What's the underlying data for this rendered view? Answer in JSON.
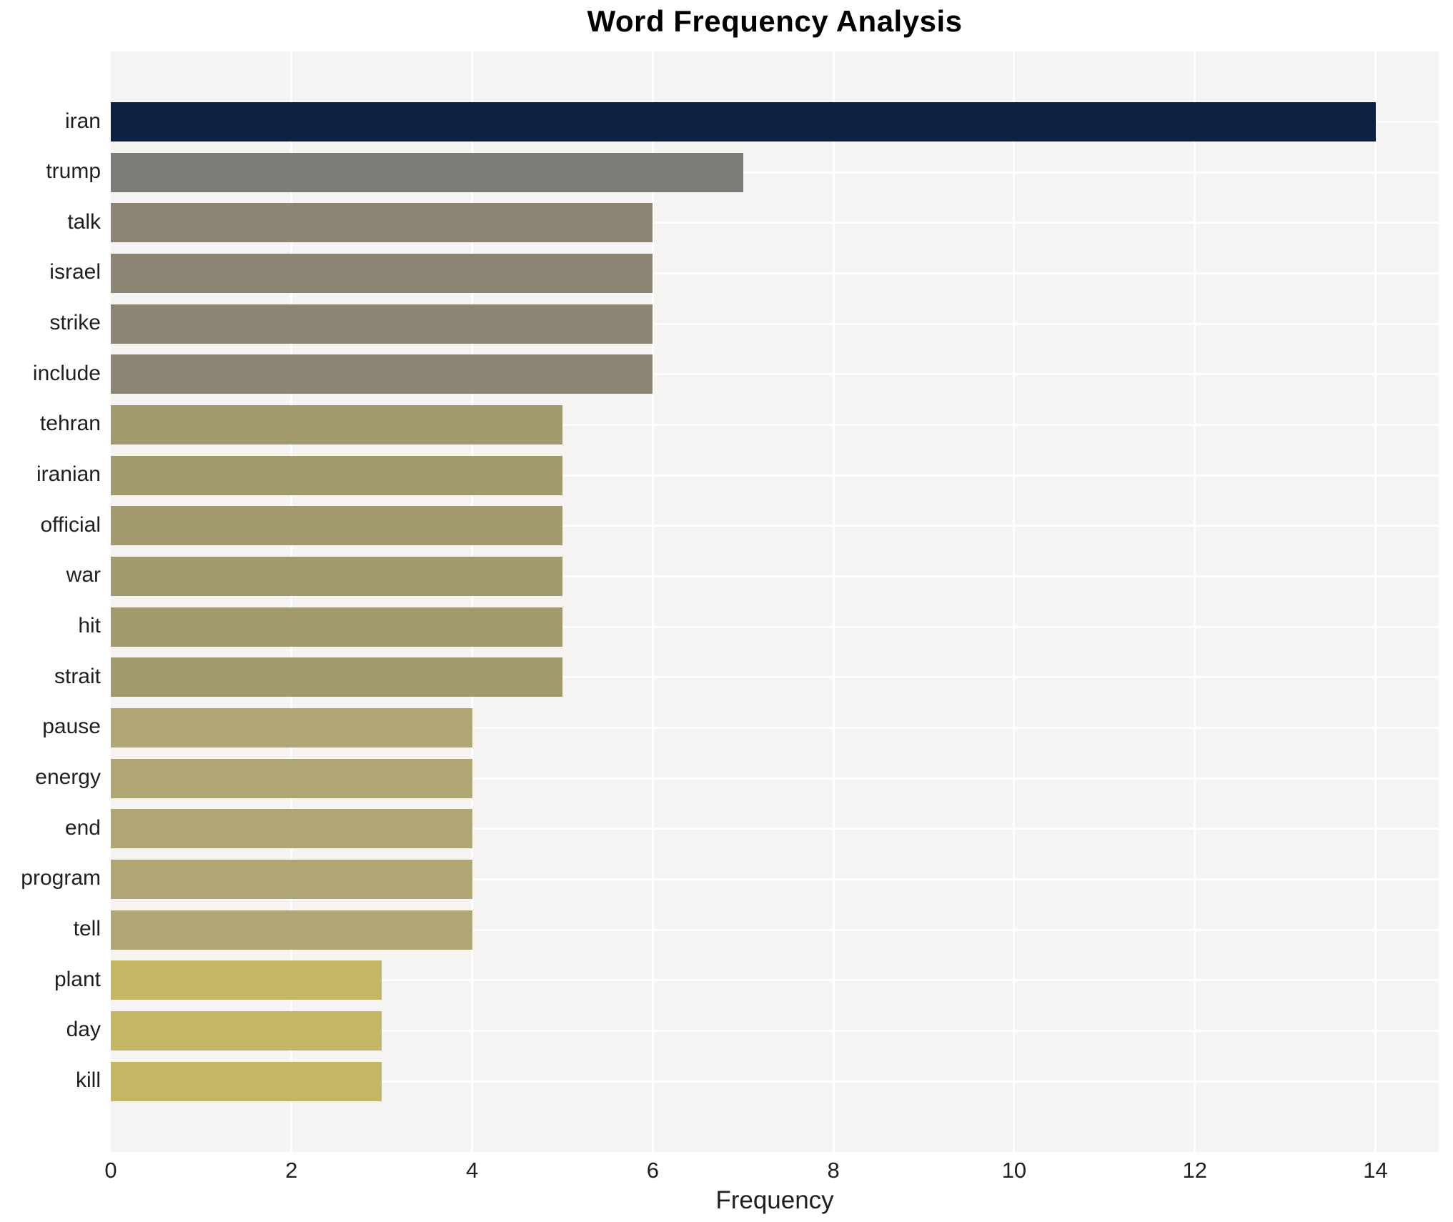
{
  "figure": {
    "background": "#ffffff",
    "plot_background": "#f5f4f2",
    "gridline_color": "#ffffff",
    "text_color": "#1f1f1f",
    "title_color": "#000000"
  },
  "chart_data": {
    "type": "bar",
    "orientation": "horizontal",
    "title": "Word Frequency Analysis",
    "xlabel": "Frequency",
    "ylabel": "",
    "categories": [
      "iran",
      "trump",
      "talk",
      "israel",
      "strike",
      "include",
      "tehran",
      "iranian",
      "official",
      "war",
      "hit",
      "strait",
      "pause",
      "energy",
      "end",
      "program",
      "tell",
      "plant",
      "day",
      "kill"
    ],
    "values": [
      14,
      7,
      6,
      6,
      6,
      6,
      5,
      5,
      5,
      5,
      5,
      5,
      4,
      4,
      4,
      4,
      4,
      3,
      3,
      3
    ],
    "bar_colors": [
      "#0d2143",
      "#7e7c78",
      "#8c8574",
      "#8c8574",
      "#8c8574",
      "#8c8574",
      "#a2996f",
      "#a2996f",
      "#a2996f",
      "#a2996f",
      "#a2996f",
      "#a2996f",
      "#b0a673",
      "#b0a673",
      "#b0a673",
      "#b0a673",
      "#b0a673",
      "#c5b666",
      "#c5b666",
      "#c5b666"
    ],
    "xlim": [
      0,
      14.7
    ],
    "xticks": [
      0,
      2,
      4,
      6,
      8,
      10,
      12,
      14
    ],
    "grid": true,
    "legend_position": "none"
  }
}
